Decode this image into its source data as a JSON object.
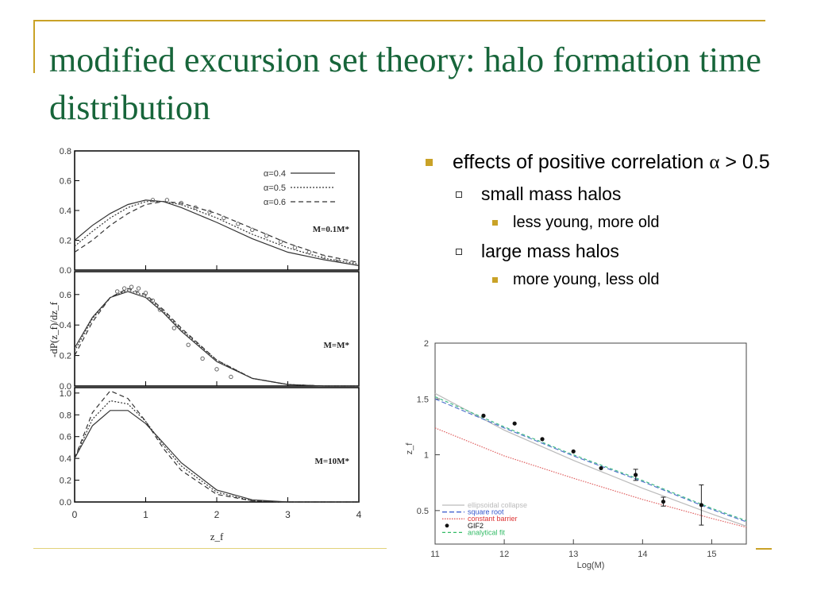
{
  "slide": {
    "title": "modified excursion set theory: halo formation time distribution",
    "accent_color": "#c9a227",
    "title_color": "#17653a"
  },
  "bullets": {
    "b1_text": "effects of positive correlation ",
    "b1_symbol": "α",
    "b1_tail": " > 0.5",
    "small": "small mass halos",
    "small_sub": "less young, more old",
    "large": "large mass halos",
    "large_sub": "more young, less old"
  },
  "chart_data": [
    {
      "type": "line",
      "panels": [
        {
          "label": "M=0.1M*",
          "yticks": [
            "0.0",
            "0.2",
            "0.4",
            "0.6",
            "0.8"
          ],
          "ylim": [
            0,
            0.8
          ],
          "legend": [
            "α=0.4",
            "α=0.5",
            "α=0.6"
          ],
          "series": [
            {
              "name": "α=0.4",
              "x": [
                0,
                0.25,
                0.5,
                0.75,
                1.0,
                1.25,
                1.5,
                2.0,
                2.5,
                3.0,
                3.5,
                4.0
              ],
              "y": [
                0.2,
                0.3,
                0.38,
                0.44,
                0.47,
                0.46,
                0.42,
                0.32,
                0.21,
                0.12,
                0.07,
                0.03
              ]
            },
            {
              "name": "α=0.5",
              "x": [
                0,
                0.25,
                0.5,
                0.75,
                1.0,
                1.25,
                1.5,
                2.0,
                2.5,
                3.0,
                3.5,
                4.0
              ],
              "y": [
                0.16,
                0.26,
                0.35,
                0.42,
                0.46,
                0.46,
                0.44,
                0.35,
                0.24,
                0.15,
                0.08,
                0.04
              ]
            },
            {
              "name": "α=0.6",
              "x": [
                0,
                0.25,
                0.5,
                0.75,
                1.0,
                1.25,
                1.5,
                2.0,
                2.5,
                3.0,
                3.5,
                4.0
              ],
              "y": [
                0.12,
                0.2,
                0.3,
                0.38,
                0.44,
                0.46,
                0.45,
                0.38,
                0.28,
                0.18,
                0.1,
                0.05
              ]
            }
          ],
          "points": {
            "x": [
              1.1,
              1.3,
              1.5,
              1.7,
              1.9,
              2.1,
              2.3,
              2.5,
              2.7,
              2.9,
              3.1,
              3.3,
              3.5,
              3.7,
              3.9
            ],
            "y": [
              0.47,
              0.47,
              0.45,
              0.42,
              0.39,
              0.35,
              0.31,
              0.27,
              0.23,
              0.19,
              0.15,
              0.12,
              0.09,
              0.07,
              0.05
            ]
          }
        },
        {
          "label": "M=M*",
          "yticks": [
            "0.0",
            "0.2",
            "0.4",
            "0.6"
          ],
          "ylim": [
            0,
            0.75
          ],
          "series": [
            {
              "name": "α=0.4",
              "x": [
                0,
                0.25,
                0.5,
                0.75,
                1.0,
                1.25,
                1.5,
                2.0,
                2.5,
                3.0,
                3.5,
                4.0
              ],
              "y": [
                0.25,
                0.45,
                0.58,
                0.62,
                0.58,
                0.48,
                0.36,
                0.16,
                0.05,
                0.01,
                0.0,
                0.0
              ]
            },
            {
              "name": "α=0.5",
              "x": [
                0,
                0.25,
                0.5,
                0.75,
                1.0,
                1.25,
                1.5,
                2.0,
                2.5,
                3.0,
                3.5,
                4.0
              ],
              "y": [
                0.23,
                0.44,
                0.58,
                0.63,
                0.59,
                0.49,
                0.37,
                0.17,
                0.05,
                0.01,
                0.0,
                0.0
              ]
            },
            {
              "name": "α=0.6",
              "x": [
                0,
                0.25,
                0.5,
                0.75,
                1.0,
                1.25,
                1.5,
                2.0,
                2.5,
                3.0,
                3.5,
                4.0
              ],
              "y": [
                0.2,
                0.42,
                0.58,
                0.64,
                0.6,
                0.5,
                0.38,
                0.17,
                0.05,
                0.01,
                0.0,
                0.0
              ]
            }
          ],
          "points": {
            "x": [
              0.6,
              0.7,
              0.8,
              0.9,
              1.0,
              1.1,
              1.2,
              1.4,
              1.6,
              1.8,
              2.0,
              2.2
            ],
            "y": [
              0.62,
              0.64,
              0.65,
              0.64,
              0.61,
              0.56,
              0.5,
              0.38,
              0.27,
              0.18,
              0.11,
              0.06
            ]
          }
        },
        {
          "label": "M=10M*",
          "yticks": [
            "0.0",
            "0.2",
            "0.4",
            "0.6",
            "0.8",
            "1.0"
          ],
          "ylim": [
            0,
            1.05
          ],
          "series": [
            {
              "name": "α=0.4",
              "x": [
                0,
                0.25,
                0.5,
                0.75,
                1.0,
                1.25,
                1.5,
                2.0,
                2.5,
                3.0,
                3.5,
                4.0
              ],
              "y": [
                0.4,
                0.7,
                0.84,
                0.84,
                0.72,
                0.54,
                0.36,
                0.11,
                0.02,
                0.0,
                0.0,
                0.0
              ]
            },
            {
              "name": "α=0.5",
              "x": [
                0,
                0.25,
                0.5,
                0.75,
                1.0,
                1.25,
                1.5,
                2.0,
                2.5,
                3.0,
                3.5,
                4.0
              ],
              "y": [
                0.4,
                0.76,
                0.93,
                0.9,
                0.74,
                0.52,
                0.33,
                0.09,
                0.01,
                0.0,
                0.0,
                0.0
              ]
            },
            {
              "name": "α=0.6",
              "x": [
                0,
                0.25,
                0.5,
                0.75,
                1.0,
                1.25,
                1.5,
                2.0,
                2.5,
                3.0,
                3.5,
                4.0
              ],
              "y": [
                0.4,
                0.82,
                1.02,
                0.95,
                0.74,
                0.49,
                0.29,
                0.07,
                0.01,
                0.0,
                0.0,
                0.0
              ]
            }
          ]
        }
      ],
      "xticks": [
        "0",
        "1",
        "2",
        "3",
        "4"
      ],
      "xlim": [
        0,
        4
      ],
      "xlabel": "z_f",
      "ylabel": "-dP(z_f)/dz_f"
    },
    {
      "type": "line",
      "xlabel": "Log(M)",
      "ylabel": "z_f",
      "xlim": [
        11,
        15.5
      ],
      "ylim": [
        0.2,
        2
      ],
      "xticks": [
        "11",
        "12",
        "13",
        "14",
        "15"
      ],
      "yticks": [
        "0.5",
        "1",
        "1.5",
        "2"
      ],
      "legend": [
        "ellipsoidal collapse",
        "square root",
        "constant barrier",
        "GIF2",
        "analytical fit"
      ],
      "series": [
        {
          "name": "ellipsoidal collapse",
          "x": [
            11,
            12,
            13,
            14,
            15,
            15.5
          ],
          "y": [
            1.55,
            1.22,
            0.95,
            0.7,
            0.47,
            0.36
          ],
          "color": "#bbbbbb"
        },
        {
          "name": "square root",
          "x": [
            11,
            12,
            13,
            14,
            15,
            15.5
          ],
          "y": [
            1.5,
            1.24,
            0.99,
            0.76,
            0.51,
            0.4
          ],
          "color": "#5577cc"
        },
        {
          "name": "constant barrier",
          "x": [
            11,
            12,
            13,
            14,
            15,
            15.5
          ],
          "y": [
            1.24,
            0.99,
            0.79,
            0.6,
            0.43,
            0.35
          ],
          "color": "#e06060"
        },
        {
          "name": "analytical fit",
          "x": [
            11,
            12,
            13,
            14,
            15,
            15.5
          ],
          "y": [
            1.52,
            1.25,
            1.0,
            0.77,
            0.52,
            0.41
          ],
          "color": "#44bb88"
        }
      ],
      "points": {
        "name": "GIF2",
        "x": [
          11.7,
          12.15,
          12.55,
          13.0,
          13.4,
          13.9,
          14.3,
          14.85
        ],
        "y": [
          1.35,
          1.28,
          1.14,
          1.03,
          0.88,
          0.82,
          0.58,
          0.55
        ],
        "err": [
          0,
          0,
          0,
          0,
          0,
          0.05,
          0.04,
          0.18
        ]
      }
    }
  ]
}
